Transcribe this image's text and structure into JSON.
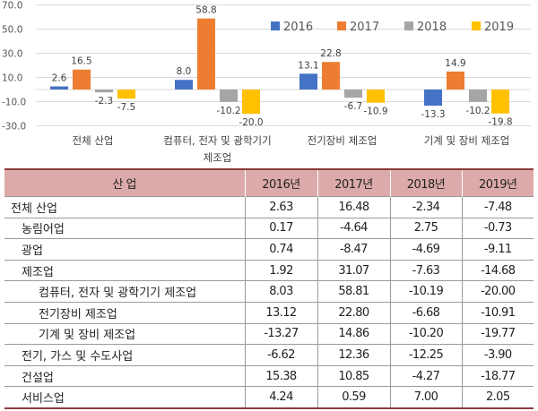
{
  "chart_data": {
    "type": "bar",
    "categories": [
      "전체 산업",
      "컴퓨터, 전자 및 광학기기 제조업",
      "전기장비 제조업",
      "기계 및 장비 제조업"
    ],
    "category_label_lines": [
      [
        "전체 산업"
      ],
      [
        "컴퓨터, 전자 및 광학기기",
        "제조업"
      ],
      [
        "전기장비 제조업"
      ],
      [
        "기계 및 장비 제조업"
      ]
    ],
    "series": [
      {
        "name": "2016",
        "color": "#4472c4",
        "values": [
          2.6,
          8.0,
          13.1,
          -13.3
        ]
      },
      {
        "name": "2017",
        "color": "#ed7d31",
        "values": [
          16.5,
          58.8,
          22.8,
          14.9
        ]
      },
      {
        "name": "2018",
        "color": "#a5a5a5",
        "values": [
          -2.3,
          -10.2,
          -6.7,
          -10.2
        ]
      },
      {
        "name": "2019",
        "color": "#ffc000",
        "values": [
          -7.5,
          -20.0,
          -10.9,
          -19.8
        ]
      }
    ],
    "yticks": [
      "70.0",
      "50.0",
      "30.0",
      "10.0",
      "-10.0",
      "-30.0"
    ],
    "ylim": [
      -30,
      70
    ],
    "grid": true,
    "legend_position": "top-right",
    "title": "",
    "xlabel": "",
    "ylabel": ""
  },
  "table": {
    "headers": [
      "산 업",
      "2016년",
      "2017년",
      "2018년",
      "2019년"
    ],
    "rows": [
      {
        "level": 0,
        "name": "전체 산업",
        "values": [
          "2.63",
          "16.48",
          "-2.34",
          "-7.48"
        ]
      },
      {
        "level": 1,
        "name": "농림어업",
        "values": [
          "0.17",
          "-4.64",
          "2.75",
          "-0.73"
        ]
      },
      {
        "level": 1,
        "name": "광업",
        "values": [
          "0.74",
          "-8.47",
          "-4.69",
          "-9.11"
        ]
      },
      {
        "level": 1,
        "name": "제조업",
        "values": [
          "1.92",
          "31.07",
          "-7.63",
          "-14.68"
        ]
      },
      {
        "level": 2,
        "name": "컴퓨터, 전자 및 광학기기 제조업",
        "values": [
          "8.03",
          "58.81",
          "-10.19",
          "-20.00"
        ]
      },
      {
        "level": 2,
        "name": "전기장비 제조업",
        "values": [
          "13.12",
          "22.80",
          "-6.68",
          "-10.91"
        ]
      },
      {
        "level": 2,
        "name": "기계 및 장비 제조업",
        "values": [
          "-13.27",
          "14.86",
          "-10.20",
          "-19.77"
        ]
      },
      {
        "level": 1,
        "name": "전기, 가스 및 수도사업",
        "values": [
          "-6.62",
          "12.36",
          "-12.25",
          "-3.90"
        ]
      },
      {
        "level": 1,
        "name": "건설업",
        "values": [
          "15.38",
          "10.85",
          "-4.27",
          "-18.77"
        ]
      },
      {
        "level": 1,
        "name": "서비스업",
        "values": [
          "4.24",
          "0.59",
          "7.00",
          "2.05"
        ]
      }
    ]
  }
}
